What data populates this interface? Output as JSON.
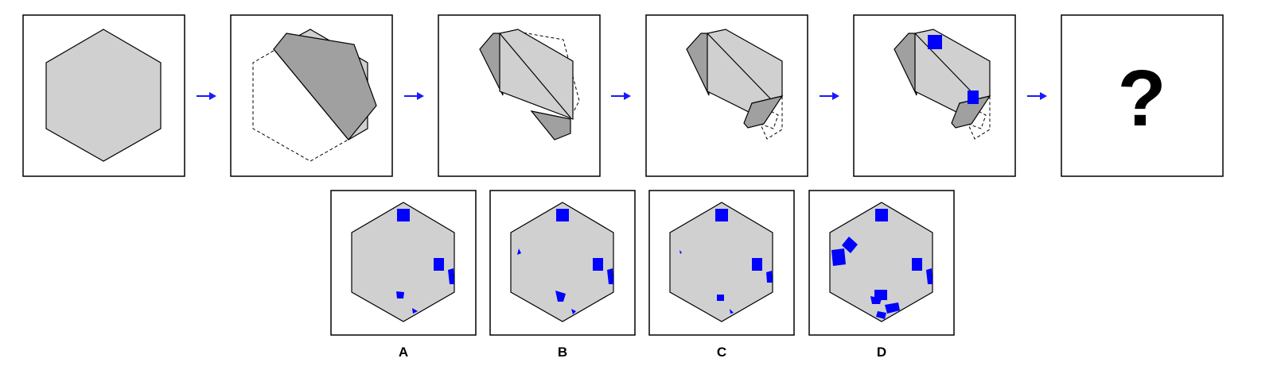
{
  "question_mark": "?",
  "options": [
    {
      "label": "A"
    },
    {
      "label": "B"
    },
    {
      "label": "C"
    },
    {
      "label": "D"
    }
  ],
  "colors": {
    "hexagon_fill": "#d0d0d0",
    "flap_fill": "#a0a0a0",
    "punch": "#0000ff",
    "arrow": "#1a1aff",
    "stroke": "#000000"
  }
}
